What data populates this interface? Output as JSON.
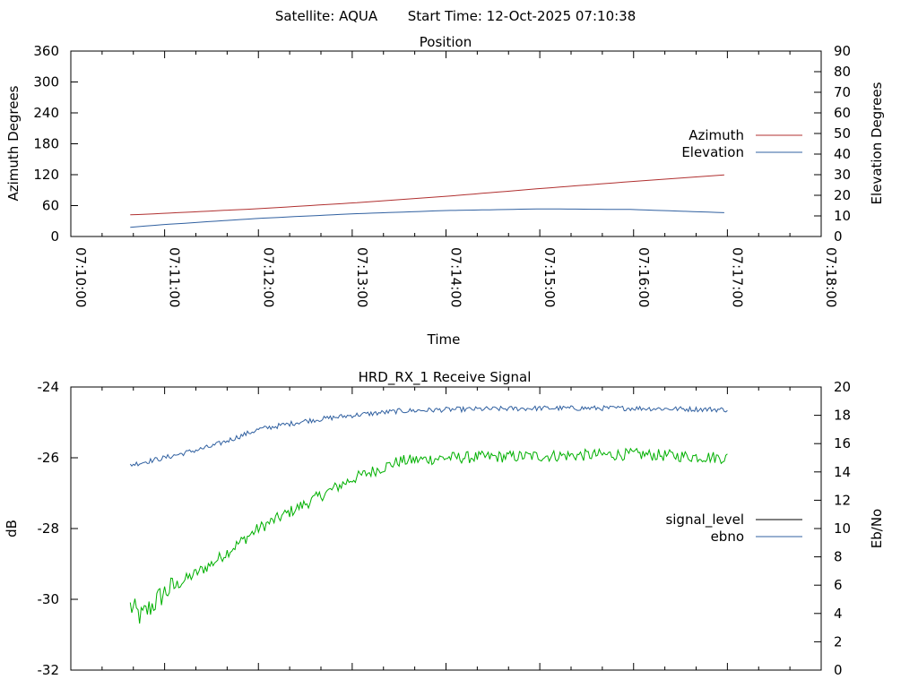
{
  "header": {
    "satellite": "Satellite: AQUA",
    "start_time": "Start Time: 12-Oct-2025 07:10:38"
  },
  "chart_data": [
    {
      "type": "line",
      "title": "Position",
      "xlabel": "Time",
      "ylabel_left": "Azimuth Degrees",
      "ylabel_right": "Elevation Degrees",
      "x_ticks": [
        "07:10:00",
        "07:11:00",
        "07:12:00",
        "07:13:00",
        "07:14:00",
        "07:15:00",
        "07:16:00",
        "07:17:00",
        "07:18:00"
      ],
      "xlim": [
        "07:10:00",
        "07:18:00"
      ],
      "ylim_left": [
        0,
        360
      ],
      "ylim_right": [
        0,
        90
      ],
      "yticks_left": [
        0,
        60,
        120,
        180,
        240,
        300,
        360
      ],
      "yticks_right": [
        0,
        10,
        20,
        30,
        40,
        50,
        60,
        70,
        80,
        90
      ],
      "legend": "right",
      "series": [
        {
          "name": "Azimuth",
          "axis": "left",
          "color": "#b03030",
          "x": [
            "07:10:38",
            "07:11:00",
            "07:12:00",
            "07:13:00",
            "07:14:00",
            "07:15:00",
            "07:16:00",
            "07:17:00"
          ],
          "values": [
            42,
            45,
            54,
            65,
            78,
            93,
            107,
            120
          ]
        },
        {
          "name": "Elevation",
          "axis": "right",
          "color": "#3060a0",
          "x": [
            "07:10:38",
            "07:11:00",
            "07:12:00",
            "07:13:00",
            "07:14:00",
            "07:15:00",
            "07:16:00",
            "07:17:00"
          ],
          "values": [
            4.5,
            5.8,
            8.8,
            11,
            12.6,
            13.4,
            13.1,
            11.5
          ]
        }
      ]
    },
    {
      "type": "line",
      "title": "HRD_RX_1 Receive Signal",
      "ylabel_left": "dB",
      "ylabel_right": "Eb/No",
      "ylim_left": [
        -32,
        -24
      ],
      "ylim_right": [
        0,
        20
      ],
      "yticks_left": [
        -32,
        -30,
        -28,
        -26,
        -24
      ],
      "yticks_right": [
        0,
        2,
        4,
        6,
        8,
        10,
        12,
        14,
        16,
        18,
        20
      ],
      "xlim": [
        "07:10:00",
        "07:18:00"
      ],
      "legend": "right",
      "series": [
        {
          "name": "signal_level",
          "axis": "left",
          "color": "#00b000",
          "x": [
            "07:10:38",
            "07:10:45",
            "07:11:00",
            "07:11:30",
            "07:12:00",
            "07:12:30",
            "07:13:00",
            "07:13:30",
            "07:14:00",
            "07:15:00",
            "07:16:00",
            "07:17:00"
          ],
          "values": [
            -30.2,
            -30.5,
            -29.8,
            -29.0,
            -28.0,
            -27.3,
            -26.6,
            -26.1,
            -26.0,
            -25.95,
            -25.9,
            -26.0
          ]
        },
        {
          "name": "ebno",
          "axis": "right",
          "color": "#3060a0",
          "x": [
            "07:10:38",
            "07:11:00",
            "07:11:30",
            "07:12:00",
            "07:12:30",
            "07:13:00",
            "07:13:30",
            "07:14:00",
            "07:15:00",
            "07:16:00",
            "07:17:00"
          ],
          "values": [
            14.5,
            15.0,
            15.8,
            17.0,
            17.6,
            18.0,
            18.3,
            18.4,
            18.5,
            18.5,
            18.4
          ]
        }
      ]
    }
  ]
}
